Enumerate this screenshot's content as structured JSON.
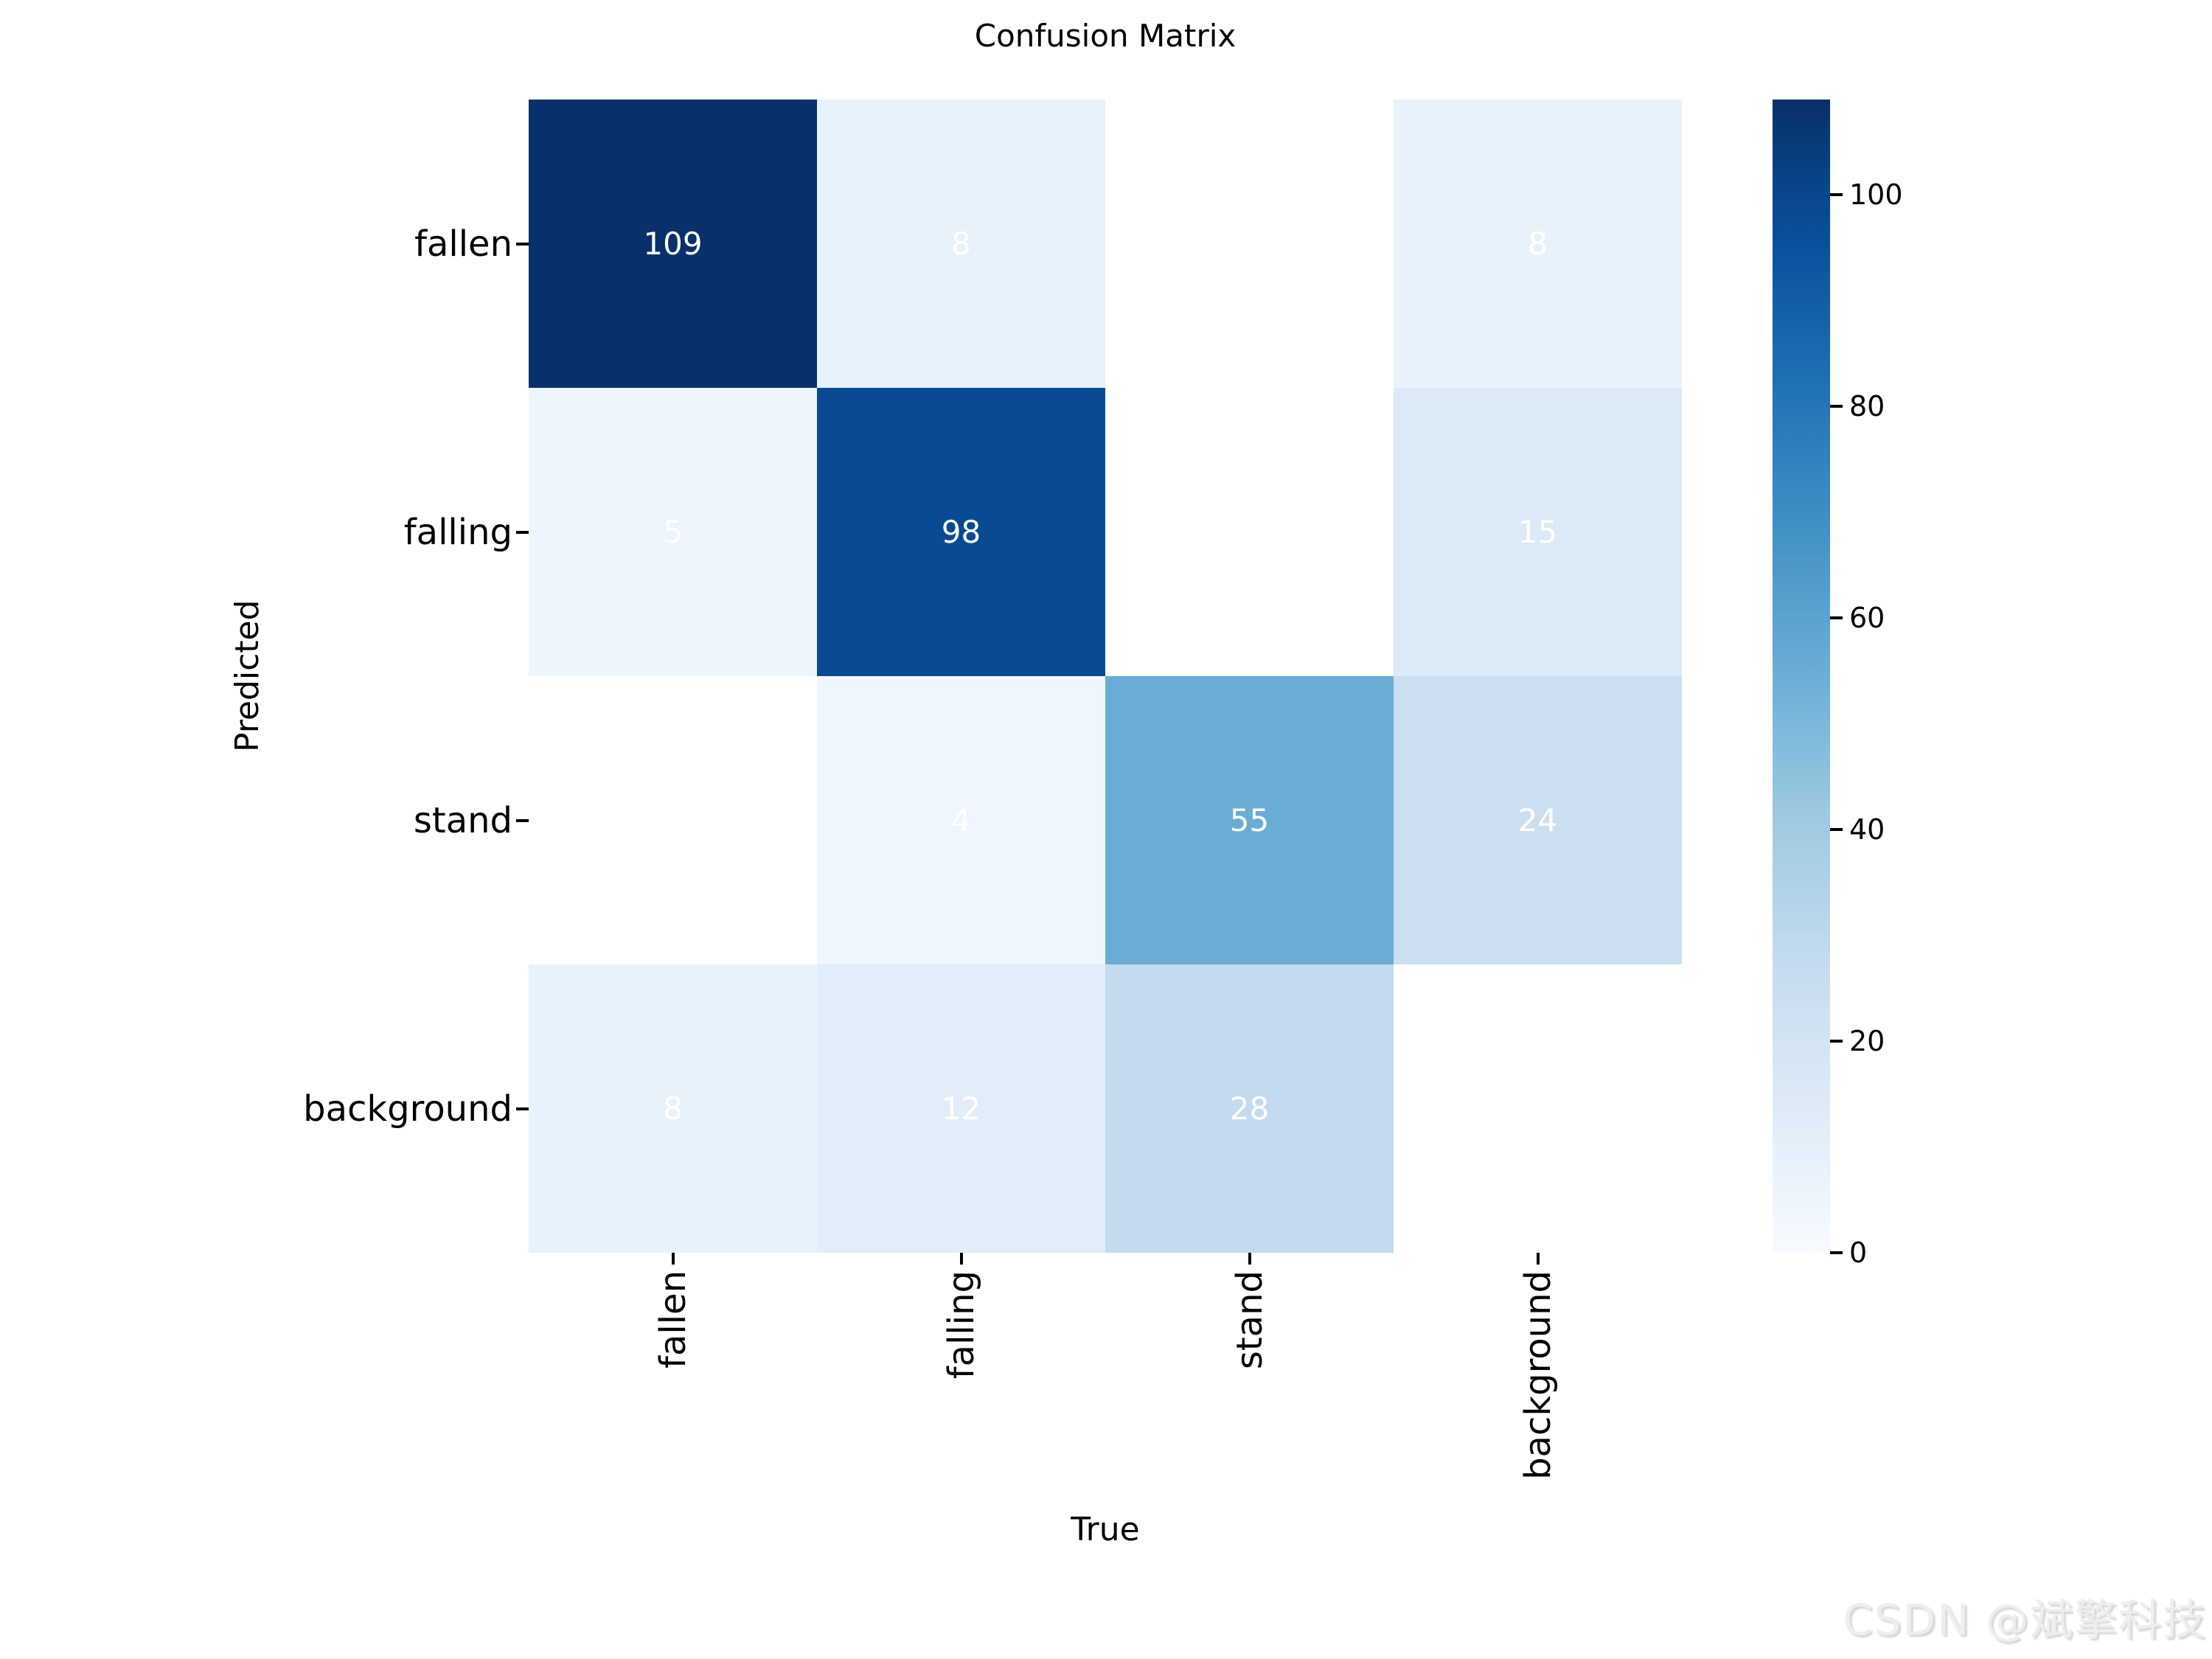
{
  "watermark": "CSDN @斌擎科技",
  "colors": {
    "annotation_text": "#ffffff",
    "empty_cell": "#ffffff",
    "axis_text": "#000000",
    "tick_mark": "#000000",
    "heatmap_max": "#08306b",
    "heatmap_min": "#f7fbff"
  },
  "chart_data": {
    "type": "heatmap",
    "title": "Confusion Matrix",
    "xlabel": "True",
    "ylabel": "Predicted",
    "x_categories": [
      "fallen",
      "falling",
      "stand",
      "background"
    ],
    "y_categories": [
      "fallen",
      "falling",
      "stand",
      "background"
    ],
    "values": [
      [
        109,
        8,
        null,
        8
      ],
      [
        5,
        98,
        null,
        15
      ],
      [
        null,
        4,
        55,
        24
      ],
      [
        8,
        12,
        28,
        null
      ]
    ],
    "vmin": 0,
    "vmax": 109,
    "colormap": "Blues",
    "colormap_stops": [
      "#f7fbff",
      "#deebf7",
      "#c6dbef",
      "#9ecae1",
      "#6baed6",
      "#4292c6",
      "#2171b5",
      "#08519c",
      "#08306b"
    ],
    "colorbar_ticks": [
      0,
      20,
      40,
      60,
      80,
      100
    ],
    "colorbar_position": "right",
    "grid": false,
    "annotations": "values shown in white text; empty cells blank"
  }
}
